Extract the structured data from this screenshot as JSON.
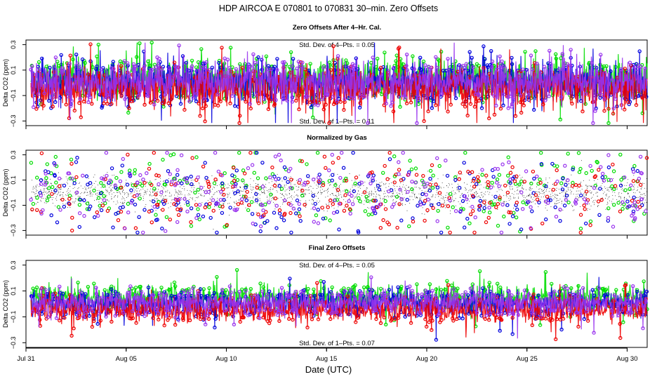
{
  "figure": {
    "title": "HDP    AIRCOA E    070801 to 070831    30–min. Zero Offsets",
    "xlabel": "Date (UTC)"
  },
  "series_colors": {
    "green": "#00dd00",
    "blue": "#0000dd",
    "red": "#ee0000",
    "purple": "#9933ee",
    "black": "#000000"
  },
  "chart_data": [
    {
      "type": "line",
      "title": "Zero Offsets After 4–Hr. Cal.",
      "ylabel": "Delta CO2 (ppm)",
      "ylim": [
        -0.32,
        0.32
      ],
      "yticks": [
        0.3,
        0.1,
        -0.1,
        -0.3
      ],
      "ytick_labels": [
        "0.3",
        "0.1",
        "−0.1",
        "−0.3"
      ],
      "xlim": [
        31,
        62
      ],
      "annot_top": "Std. Dev. of 4–Pts. = 0.05",
      "annot_bottom": "Std. Dev. of 1–Pts. = 0.11",
      "series": [
        {
          "name": "green",
          "mean": 0.03,
          "sd": 0.1
        },
        {
          "name": "blue",
          "mean": 0.0,
          "sd": 0.1
        },
        {
          "name": "red",
          "mean": -0.05,
          "sd": 0.1
        },
        {
          "name": "purple",
          "mean": 0.01,
          "sd": 0.1
        }
      ]
    },
    {
      "type": "scatter",
      "title": "Normalized by Gas",
      "ylabel": "Delta CO2 (ppm)",
      "ylim": [
        -0.32,
        0.32
      ],
      "yticks": [
        0.3,
        0.1,
        -0.1,
        -0.3
      ],
      "ytick_labels": [
        "0.3",
        "0.1",
        "−0.1",
        "−0.3"
      ],
      "xlim": [
        31,
        62
      ],
      "series": [
        {
          "name": "black",
          "mean": 0.0,
          "sd": 0.06
        },
        {
          "name": "green",
          "mean": 0.02,
          "sd": 0.14
        },
        {
          "name": "blue",
          "mean": -0.01,
          "sd": 0.14
        },
        {
          "name": "red",
          "mean": -0.02,
          "sd": 0.14
        },
        {
          "name": "purple",
          "mean": 0.01,
          "sd": 0.14
        }
      ]
    },
    {
      "type": "line",
      "title": "Final Zero Offsets",
      "ylabel": "Delta CO2 (ppm)",
      "ylim": [
        -0.32,
        0.32
      ],
      "yticks": [
        0.3,
        0.1,
        -0.1,
        -0.3
      ],
      "ytick_labels": [
        "0.3",
        "0.1",
        "−0.1",
        "−0.3"
      ],
      "xlim": [
        31,
        62
      ],
      "annot_top": "Std. Dev. of 4–Pts. = 0.05",
      "annot_bottom": "Std. Dev. of 1–Pts. = 0.07",
      "series": [
        {
          "name": "green",
          "mean": 0.05,
          "sd": 0.06
        },
        {
          "name": "blue",
          "mean": 0.0,
          "sd": 0.06
        },
        {
          "name": "red",
          "mean": -0.05,
          "sd": 0.06
        },
        {
          "name": "purple",
          "mean": 0.01,
          "sd": 0.06
        }
      ]
    }
  ],
  "x_axis": {
    "ticks": [
      31,
      36,
      41,
      46,
      51,
      56,
      61
    ],
    "tick_labels": [
      "Jul 31",
      "Aug 05",
      "Aug 10",
      "Aug 15",
      "Aug 20",
      "Aug 25",
      "Aug 30"
    ],
    "data_start": 31.25,
    "data_end": 62.0
  }
}
